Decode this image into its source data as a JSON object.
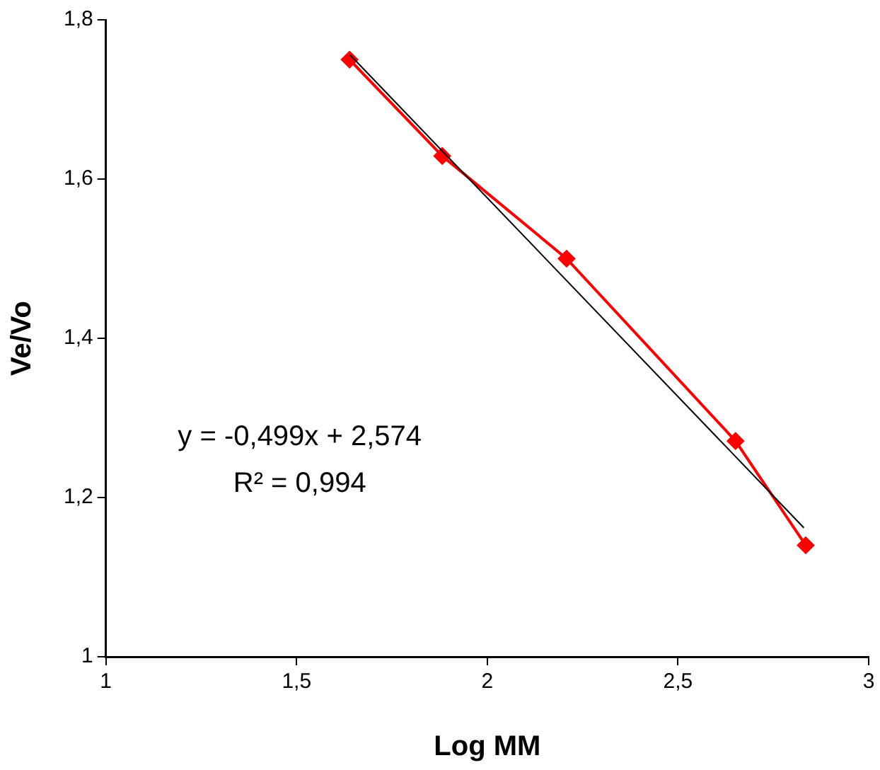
{
  "chart_data": {
    "type": "line",
    "xlabel": "Log MM",
    "ylabel": "Ve/Vo",
    "annotations": [
      "y = -0,499x + 2,574",
      "R² = 0,994"
    ],
    "xlim": [
      1,
      3
    ],
    "xticks": [
      1,
      {
        "value": 1.5,
        "label": "1,5"
      },
      2,
      {
        "value": 2.5,
        "label": "2,5"
      },
      3
    ],
    "ylim": [
      1,
      1.8
    ],
    "yticks": [
      1,
      {
        "value": 1.2,
        "label": "1,2"
      },
      {
        "value": 1.4,
        "label": "1,4"
      },
      {
        "value": 1.6,
        "label": "1,6"
      },
      {
        "value": 1.8,
        "label": "1,8"
      }
    ],
    "grid": false,
    "legend": false,
    "series": [
      {
        "color": "#ff0000",
        "marker": "diamond",
        "line_style": "solid",
        "x": [
          1.639,
          1.882,
          2.208,
          2.651,
          2.835
        ],
        "values": [
          1.75,
          1.629,
          1.5,
          1.271,
          1.14
        ]
      },
      {
        "color": "#000000",
        "marker": "none",
        "line_style": "solid",
        "x": [
          1.64,
          2.83
        ],
        "values": [
          1.756,
          1.162
        ]
      }
    ]
  }
}
